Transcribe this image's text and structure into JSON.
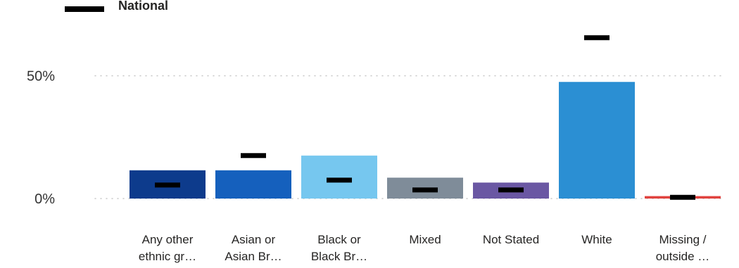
{
  "legend": {
    "label": "National",
    "color": "#000000"
  },
  "chart_data": {
    "type": "bar",
    "categories": [
      [
        "Any other",
        "ethnic gr…"
      ],
      [
        "Asian or",
        "Asian Br…"
      ],
      [
        "Black or",
        "Black Br…"
      ],
      [
        "Mixed"
      ],
      [
        "Not Stated"
      ],
      [
        "White"
      ],
      [
        "Missing /",
        "outside …"
      ]
    ],
    "series": [
      {
        "type": "bar",
        "values": [
          11.5,
          11.5,
          17.5,
          8.5,
          6.5,
          47.5,
          1.0
        ],
        "colors": [
          "#0d3b8c",
          "#1560bd",
          "#76c7ef",
          "#7f8c99",
          "#6a57a3",
          "#2b8fd3",
          "#e0433f"
        ]
      },
      {
        "name": "National",
        "type": "marker",
        "values": [
          5.5,
          17.5,
          7.5,
          3.5,
          3.5,
          65.5,
          0.5
        ],
        "color": "#000000"
      }
    ],
    "yticks": [
      0,
      50
    ],
    "ytick_labels": [
      "0%",
      "50%"
    ],
    "ylim": [
      0,
      75
    ],
    "grid": true,
    "legend_position": "top-left"
  }
}
